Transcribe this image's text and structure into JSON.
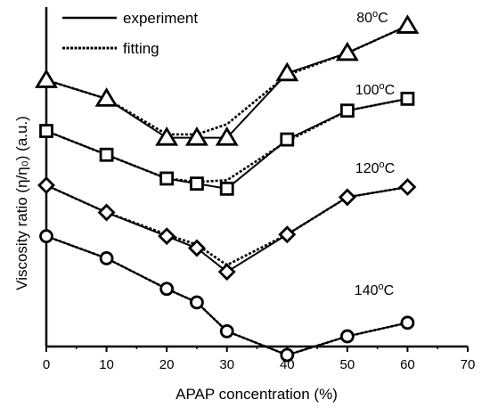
{
  "chart_data": {
    "type": "line",
    "title": "",
    "xlabel": "APAP concentration (%)",
    "ylabel": "Viscosity ratio (η/η₀) (a.u.)",
    "xlim": [
      0,
      70
    ],
    "xticks": [
      0,
      10,
      20,
      30,
      40,
      50,
      60,
      70
    ],
    "yticks_shown": false,
    "ylim": [
      0,
      1
    ],
    "grid": false,
    "legend": {
      "placement": "top-left",
      "entries": [
        {
          "name": "experiment",
          "style": "solid"
        },
        {
          "name": "fitting",
          "style": "dashed"
        }
      ]
    },
    "series": [
      {
        "name": "80°C",
        "label": {
          "base": "80",
          "sup": "o",
          "unit": "C"
        },
        "marker": "triangle",
        "x": [
          0,
          10,
          20,
          25,
          30,
          40,
          50,
          60
        ],
        "experiment": [
          0.785,
          0.73,
          0.615,
          0.615,
          0.615,
          0.805,
          0.865,
          0.945
        ],
        "fitting": [
          0.785,
          0.73,
          0.625,
          0.625,
          0.655,
          0.8,
          0.865,
          0.945
        ]
      },
      {
        "name": "100°C",
        "label": {
          "base": "100",
          "sup": "o",
          "unit": "C"
        },
        "marker": "square",
        "x": [
          0,
          10,
          20,
          25,
          30,
          40,
          50,
          60
        ],
        "experiment": [
          0.635,
          0.565,
          0.495,
          0.48,
          0.465,
          0.61,
          0.695,
          0.73
        ],
        "fitting": [
          0.635,
          0.565,
          0.495,
          0.485,
          0.49,
          0.605,
          0.695,
          0.73
        ]
      },
      {
        "name": "120°C",
        "label": {
          "base": "120",
          "sup": "o",
          "unit": "C"
        },
        "marker": "diamond",
        "x": [
          0,
          10,
          20,
          25,
          30,
          40,
          50,
          60
        ],
        "experiment": [
          0.475,
          0.395,
          0.325,
          0.29,
          0.22,
          0.33,
          0.44,
          0.47
        ],
        "fitting": [
          0.475,
          0.395,
          0.33,
          0.3,
          0.24,
          0.33,
          0.44,
          0.47
        ]
      },
      {
        "name": "140°C",
        "label": {
          "base": "140",
          "sup": "o",
          "unit": "C"
        },
        "marker": "circle",
        "x": [
          0,
          10,
          20,
          25,
          30,
          40,
          50,
          60
        ],
        "experiment": [
          0.325,
          0.26,
          0.17,
          0.13,
          0.045,
          -0.025,
          0.03,
          0.07
        ],
        "fitting": [
          0.325,
          0.26,
          0.17,
          0.13,
          0.045,
          -0.025,
          0.03,
          0.07
        ]
      }
    ]
  }
}
